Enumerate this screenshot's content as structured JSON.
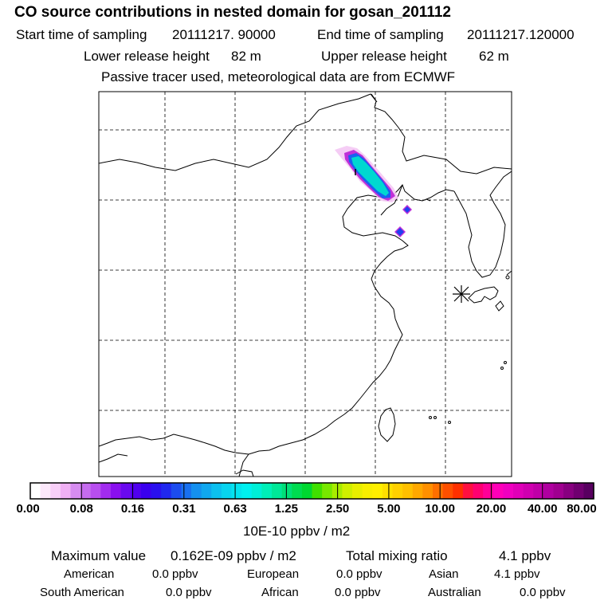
{
  "header": {
    "title": "CO  source contributions in nested domain for gosan_201112",
    "start_label": "Start time of sampling",
    "start_value": "20111217. 90000",
    "end_label": "End time of sampling",
    "end_value": "20111217.120000",
    "lower_label": "Lower release height",
    "lower_value": "82 m",
    "upper_label": "Upper release height",
    "upper_value": "62 m",
    "note": "Passive tracer used, meteorological data are from ECMWF"
  },
  "map": {
    "description_icons": [
      "receptor-star-icon"
    ],
    "grid": "dashed"
  },
  "colorbar": {
    "unit": "10E-10 ppbv / m2",
    "ticks": [
      "0.00",
      "0.08",
      "0.16",
      "0.31",
      "0.63",
      "1.25",
      "2.50",
      "5.00",
      "10.00",
      "20.00",
      "40.00",
      "80.00"
    ],
    "colors": [
      "#ffffff",
      "#fce8fb",
      "#f8cff8",
      "#f0b0f4",
      "#d68cf0",
      "#c66cf0",
      "#b84ef0",
      "#a22cf0",
      "#8a10f0",
      "#6a0af0",
      "#5000f0",
      "#3a00f0",
      "#2a10f0",
      "#2028f0",
      "#1c4cf0",
      "#1870f0",
      "#1490f0",
      "#10a8f0",
      "#0cc0f0",
      "#08d4f0",
      "#04e4f0",
      "#00f0f0",
      "#00f0d8",
      "#00f0b8",
      "#00e898",
      "#00e078",
      "#00dc50",
      "#00d830",
      "#40e000",
      "#78e800",
      "#a8ec00",
      "#d0f000",
      "#e8f000",
      "#f8f000",
      "#fff000",
      "#ffe000",
      "#ffd000",
      "#ffc000",
      "#ffa800",
      "#ff9000",
      "#ff7000",
      "#ff5000",
      "#ff3000",
      "#ff1040",
      "#ff0070",
      "#ff0098",
      "#ff00b8",
      "#f000c0",
      "#e000b8",
      "#d000b0",
      "#c000a8",
      "#b000a0",
      "#a00090",
      "#880080",
      "#700070",
      "#580060"
    ]
  },
  "footer": {
    "max_label": "Maximum value",
    "max_value": "0.162E-09 ppbv / m2",
    "total_label": "Total mixing ratio",
    "total_value": "4.1 ppbv",
    "regions": [
      {
        "name": "American",
        "value": "0.0 ppbv"
      },
      {
        "name": "European",
        "value": "0.0 ppbv"
      },
      {
        "name": "Asian",
        "value": "4.1 ppbv"
      },
      {
        "name": "South American",
        "value": "0.0 ppbv"
      },
      {
        "name": "African",
        "value": "0.0 ppbv"
      },
      {
        "name": "Australian",
        "value": "0.0 ppbv"
      }
    ]
  }
}
